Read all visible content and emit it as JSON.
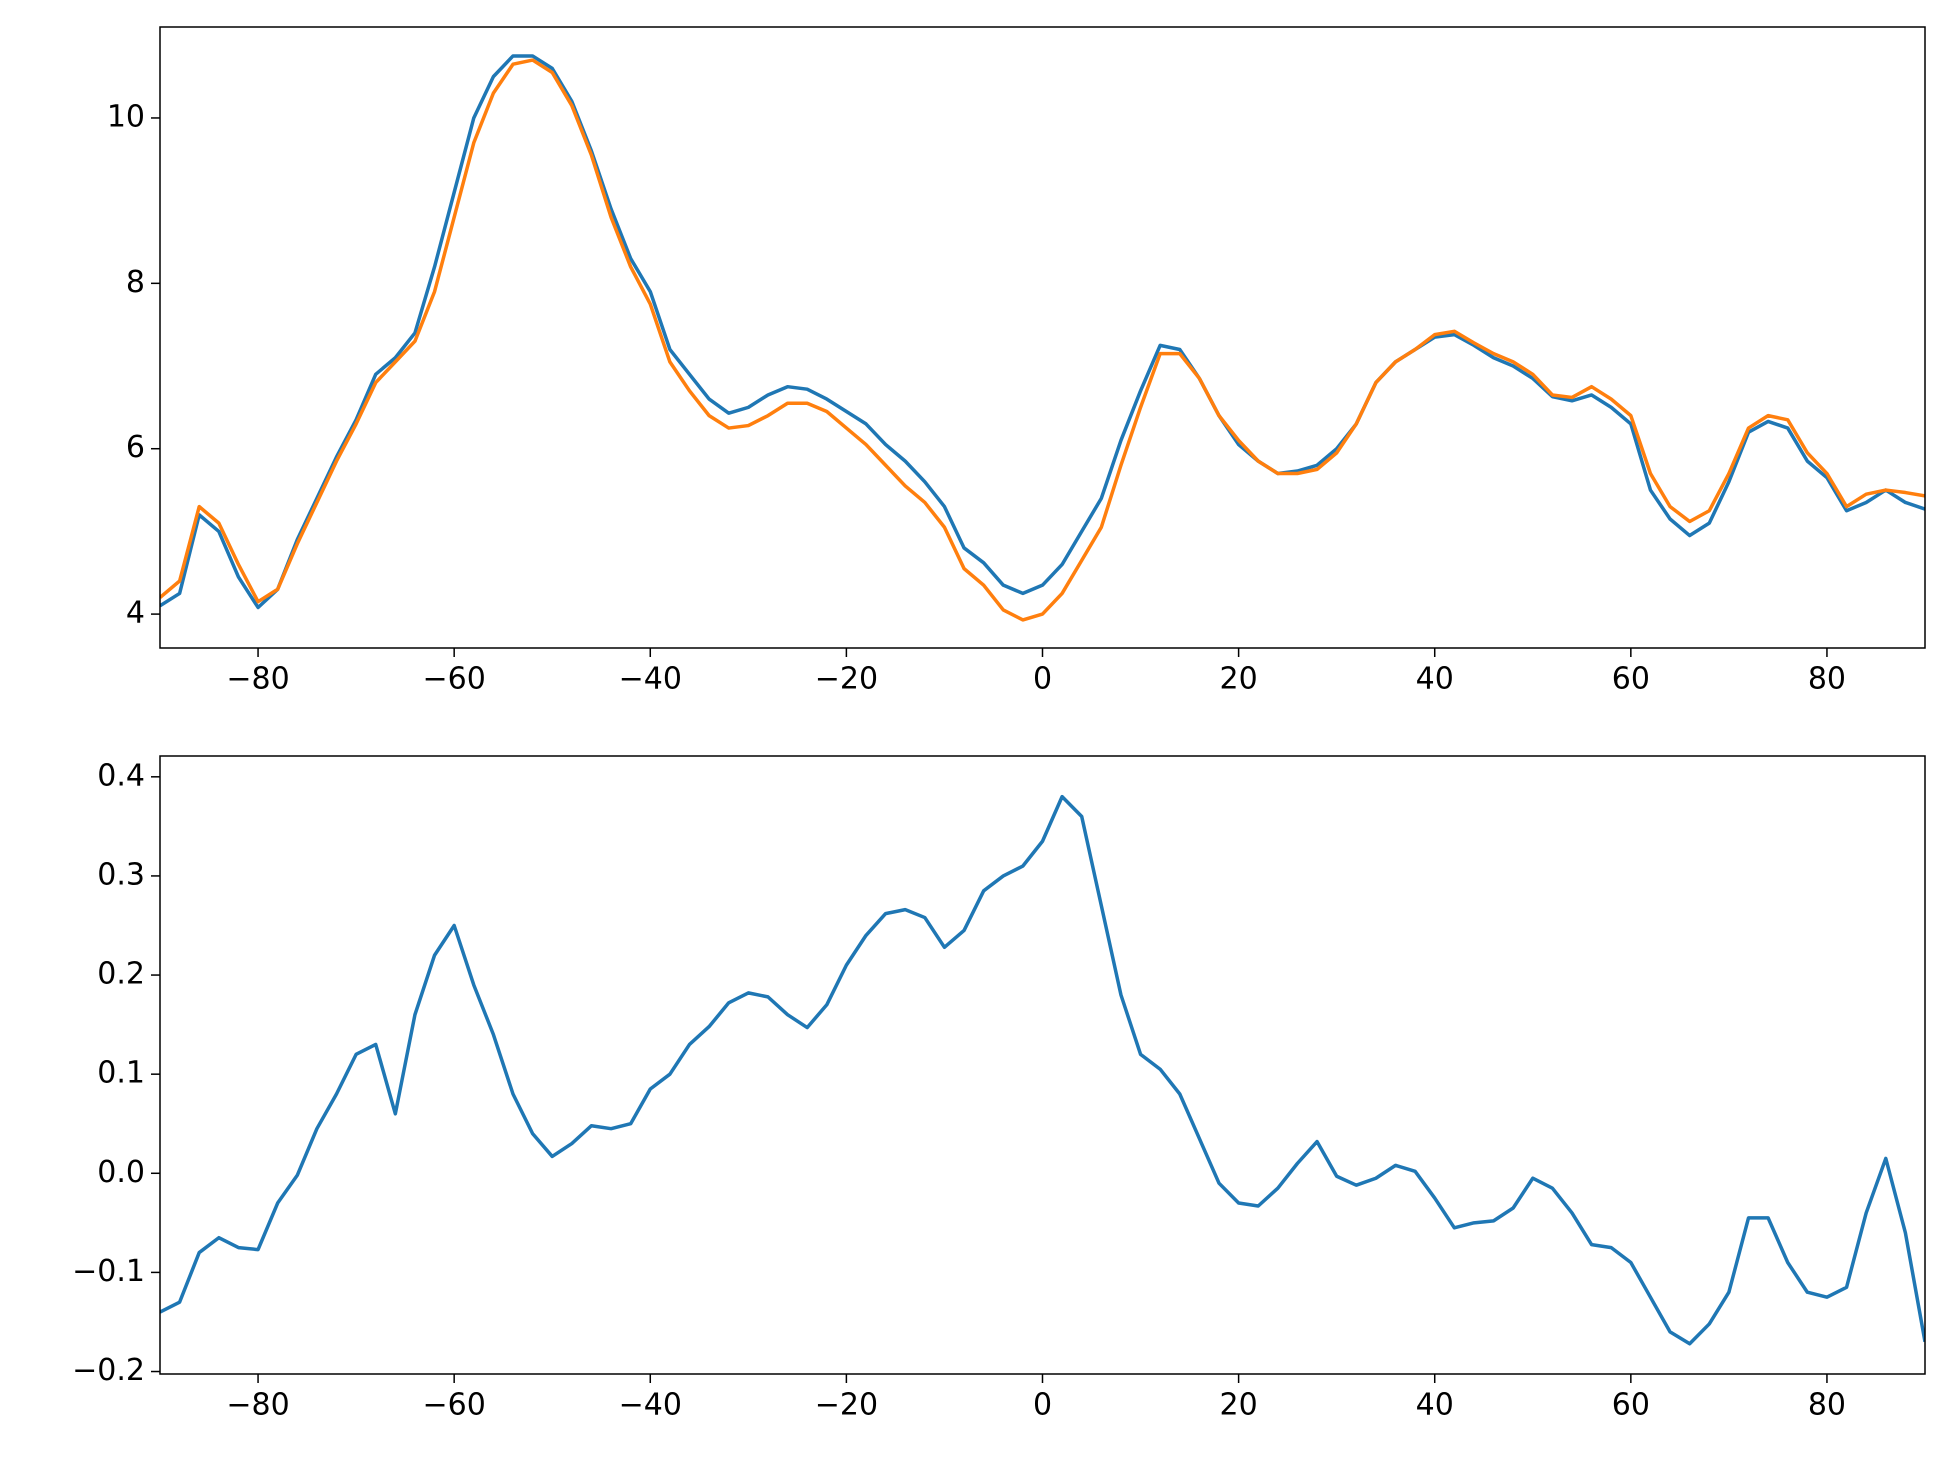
{
  "chart_data": [
    {
      "type": "line",
      "x": [
        -90,
        -88,
        -86,
        -84,
        -82,
        -80,
        -78,
        -76,
        -74,
        -72,
        -70,
        -68,
        -66,
        -64,
        -62,
        -60,
        -58,
        -56,
        -54,
        -52,
        -50,
        -48,
        -46,
        -44,
        -42,
        -40,
        -38,
        -36,
        -34,
        -32,
        -30,
        -28,
        -26,
        -24,
        -22,
        -20,
        -18,
        -16,
        -14,
        -12,
        -10,
        -8,
        -6,
        -4,
        -2,
        0,
        2,
        4,
        6,
        8,
        10,
        12,
        14,
        16,
        18,
        20,
        22,
        24,
        26,
        28,
        30,
        32,
        34,
        36,
        38,
        40,
        42,
        44,
        46,
        48,
        50,
        52,
        54,
        56,
        58,
        60,
        62,
        64,
        66,
        68,
        70,
        72,
        74,
        76,
        78,
        80,
        82,
        84,
        86,
        88,
        90
      ],
      "series": [
        {
          "color": "#1f77b4",
          "values": [
            4.1,
            4.25,
            5.2,
            5.0,
            4.45,
            4.08,
            4.3,
            4.9,
            5.4,
            5.9,
            6.35,
            6.9,
            7.1,
            7.4,
            8.2,
            9.1,
            10.0,
            10.5,
            10.75,
            10.75,
            10.6,
            10.2,
            9.6,
            8.9,
            8.3,
            7.9,
            7.2,
            6.9,
            6.6,
            6.43,
            6.5,
            6.65,
            6.75,
            6.72,
            6.6,
            6.45,
            6.3,
            6.05,
            5.85,
            5.6,
            5.3,
            4.8,
            4.62,
            4.35,
            4.25,
            4.35,
            4.6,
            5.0,
            5.4,
            6.1,
            6.7,
            7.25,
            7.2,
            6.85,
            6.4,
            6.05,
            5.85,
            5.7,
            5.73,
            5.8,
            6.0,
            6.3,
            6.8,
            7.05,
            7.2,
            7.35,
            7.38,
            7.25,
            7.1,
            7.0,
            6.85,
            6.63,
            6.58,
            6.65,
            6.5,
            6.3,
            5.5,
            5.15,
            4.95,
            5.1,
            5.6,
            6.2,
            6.33,
            6.25,
            5.85,
            5.65,
            5.25,
            5.35,
            5.5,
            5.35,
            5.27
          ]
        },
        {
          "color": "#ff7f0e",
          "values": [
            4.2,
            4.4,
            5.3,
            5.1,
            4.6,
            4.15,
            4.3,
            4.85,
            5.35,
            5.85,
            6.3,
            6.8,
            7.05,
            7.3,
            7.9,
            8.8,
            9.7,
            10.3,
            10.65,
            10.7,
            10.55,
            10.15,
            9.55,
            8.8,
            8.2,
            7.75,
            7.05,
            6.7,
            6.4,
            6.25,
            6.28,
            6.4,
            6.55,
            6.55,
            6.45,
            6.25,
            6.05,
            5.8,
            5.55,
            5.35,
            5.05,
            4.55,
            4.35,
            4.05,
            3.93,
            4.0,
            4.25,
            4.65,
            5.05,
            5.8,
            6.5,
            7.15,
            7.15,
            6.85,
            6.4,
            6.1,
            5.85,
            5.7,
            5.7,
            5.75,
            5.95,
            6.3,
            6.8,
            7.05,
            7.2,
            7.38,
            7.42,
            7.28,
            7.15,
            7.05,
            6.9,
            6.65,
            6.62,
            6.75,
            6.6,
            6.4,
            5.7,
            5.3,
            5.12,
            5.25,
            5.7,
            6.25,
            6.4,
            6.35,
            5.95,
            5.7,
            5.3,
            5.45,
            5.5,
            5.47,
            5.43
          ]
        }
      ],
      "xlim": [
        -90,
        90
      ],
      "ylim": [
        3.59,
        11.1
      ],
      "xticks": [
        {
          "value": -80,
          "label": "−80"
        },
        {
          "value": -60,
          "label": "−60"
        },
        {
          "value": -40,
          "label": "−40"
        },
        {
          "value": -20,
          "label": "−20"
        },
        0,
        20,
        40,
        60,
        80
      ],
      "yticks": [
        4,
        6,
        8,
        10
      ]
    },
    {
      "type": "line",
      "x": [
        -90,
        -88,
        -86,
        -84,
        -82,
        -80,
        -78,
        -76,
        -74,
        -72,
        -70,
        -68,
        -66,
        -64,
        -62,
        -60,
        -58,
        -56,
        -54,
        -52,
        -50,
        -48,
        -46,
        -44,
        -42,
        -40,
        -38,
        -36,
        -34,
        -32,
        -30,
        -28,
        -26,
        -24,
        -22,
        -20,
        -18,
        -16,
        -14,
        -12,
        -10,
        -8,
        -6,
        -4,
        -2,
        0,
        2,
        4,
        6,
        8,
        10,
        12,
        14,
        16,
        18,
        20,
        22,
        24,
        26,
        28,
        30,
        32,
        34,
        36,
        38,
        40,
        42,
        44,
        46,
        48,
        50,
        52,
        54,
        56,
        58,
        60,
        62,
        64,
        66,
        68,
        70,
        72,
        74,
        76,
        78,
        80,
        82,
        84,
        86,
        88,
        90
      ],
      "series": [
        {
          "color": "#1f77b4",
          "values": [
            -0.14,
            -0.13,
            -0.08,
            -0.065,
            -0.075,
            -0.077,
            -0.03,
            -0.002,
            0.045,
            0.08,
            0.12,
            0.13,
            0.06,
            0.16,
            0.22,
            0.25,
            0.19,
            0.14,
            0.08,
            0.04,
            0.017,
            0.03,
            0.048,
            0.045,
            0.05,
            0.085,
            0.1,
            0.13,
            0.148,
            0.172,
            0.182,
            0.178,
            0.16,
            0.147,
            0.17,
            0.21,
            0.24,
            0.262,
            0.266,
            0.258,
            0.228,
            0.245,
            0.285,
            0.3,
            0.31,
            0.335,
            0.38,
            0.36,
            0.27,
            0.18,
            0.12,
            0.105,
            0.08,
            0.035,
            -0.01,
            -0.03,
            -0.033,
            -0.015,
            0.01,
            0.032,
            -0.003,
            -0.012,
            -0.005,
            0.008,
            0.002,
            -0.025,
            -0.055,
            -0.05,
            -0.048,
            -0.035,
            -0.005,
            -0.015,
            -0.04,
            -0.072,
            -0.075,
            -0.09,
            -0.125,
            -0.16,
            -0.172,
            -0.152,
            -0.12,
            -0.045,
            -0.045,
            -0.09,
            -0.12,
            -0.125,
            -0.115,
            -0.04,
            0.015,
            -0.06,
            -0.17
          ]
        }
      ],
      "xlim": [
        -90,
        90
      ],
      "ylim": [
        -0.2025,
        0.421
      ],
      "xticks": [
        {
          "value": -80,
          "label": "−80"
        },
        {
          "value": -60,
          "label": "−60"
        },
        {
          "value": -40,
          "label": "−40"
        },
        {
          "value": -20,
          "label": "−20"
        },
        0,
        20,
        40,
        60,
        80
      ],
      "yticks": [
        {
          "value": -0.2,
          "label": "−0.2"
        },
        {
          "value": -0.1,
          "label": "−0.1"
        },
        {
          "value": 0,
          "label": "0.0"
        },
        0.1,
        0.2,
        0.3,
        0.4
      ]
    }
  ]
}
